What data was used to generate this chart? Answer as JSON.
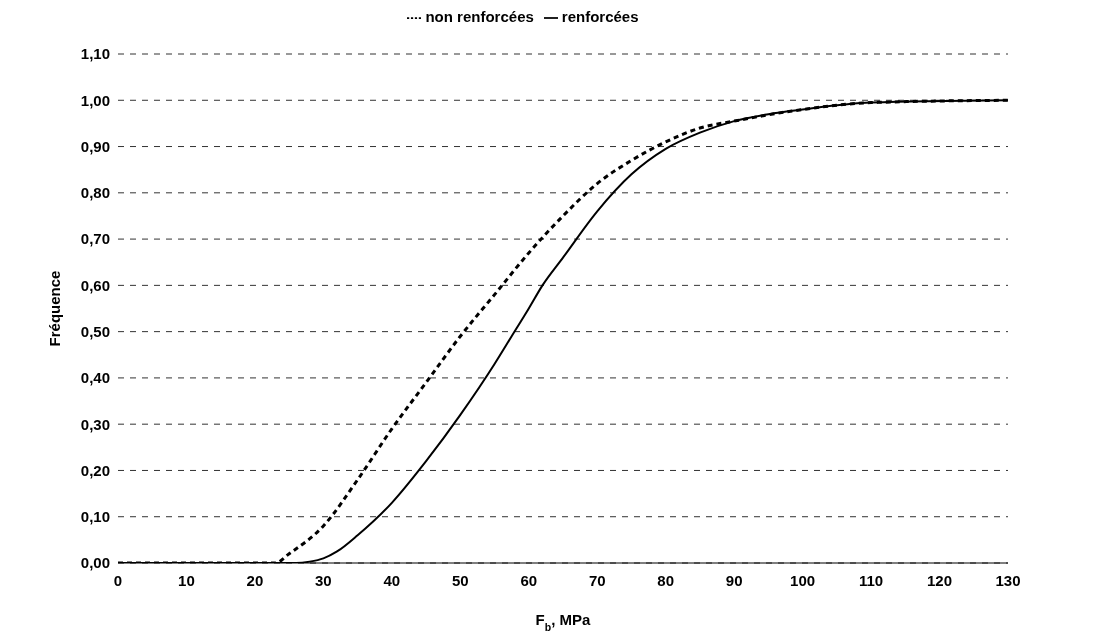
{
  "chart_data": {
    "type": "line",
    "xlabel": "F$_{b}$, MPa",
    "ylabel": "Fréquence",
    "xlim": [
      0,
      130
    ],
    "xticks": [
      0,
      10,
      20,
      30,
      40,
      50,
      60,
      70,
      80,
      90,
      100,
      110,
      120,
      130
    ],
    "ylim": [
      0,
      1.1
    ],
    "yticks": [
      {
        "value": 0,
        "label": "0,00"
      },
      {
        "value": 0.1,
        "label": "0,10"
      },
      {
        "value": 0.2,
        "label": "0,20"
      },
      {
        "value": 0.3,
        "label": "0,30"
      },
      {
        "value": 0.4,
        "label": "0,40"
      },
      {
        "value": 0.5,
        "label": "0,50"
      },
      {
        "value": 0.6,
        "label": "0,60"
      },
      {
        "value": 0.7,
        "label": "0,70"
      },
      {
        "value": 0.8,
        "label": "0,80"
      },
      {
        "value": 0.9,
        "label": "0,90"
      },
      {
        "value": 1,
        "label": "1,00"
      },
      {
        "value": 1.1,
        "label": "1,10"
      }
    ],
    "grid": "y",
    "legend": "top",
    "marker": "none",
    "series": [
      {
        "name": "renforcées",
        "color": "#000000",
        "line_style": "solid",
        "x": [
          0,
          10,
          20,
          26,
          28,
          30,
          32,
          35,
          40,
          45,
          50,
          55,
          57.5,
          60,
          62,
          65,
          70,
          75,
          80,
          85,
          90,
          95,
          100,
          110,
          130
        ],
        "values": [
          0,
          0,
          0,
          0,
          0.003,
          0.01,
          0.025,
          0.06,
          0.13,
          0.22,
          0.32,
          0.43,
          0.49,
          0.55,
          0.6,
          0.66,
          0.76,
          0.84,
          0.895,
          0.93,
          0.955,
          0.97,
          0.98,
          0.995,
          1
        ]
      },
      {
        "name": "non renforcées",
        "color": "#000000",
        "line_style": "dashed",
        "x": [
          0,
          10,
          20,
          23,
          25,
          30,
          35,
          40,
          45,
          50,
          55,
          60,
          65,
          70,
          75,
          80,
          85,
          90,
          100,
          110,
          130
        ],
        "values": [
          0,
          0,
          0,
          0,
          0.02,
          0.08,
          0.18,
          0.29,
          0.39,
          0.49,
          0.58,
          0.67,
          0.75,
          0.82,
          0.87,
          0.91,
          0.94,
          0.955,
          0.98,
          0.995,
          1
        ]
      }
    ]
  }
}
